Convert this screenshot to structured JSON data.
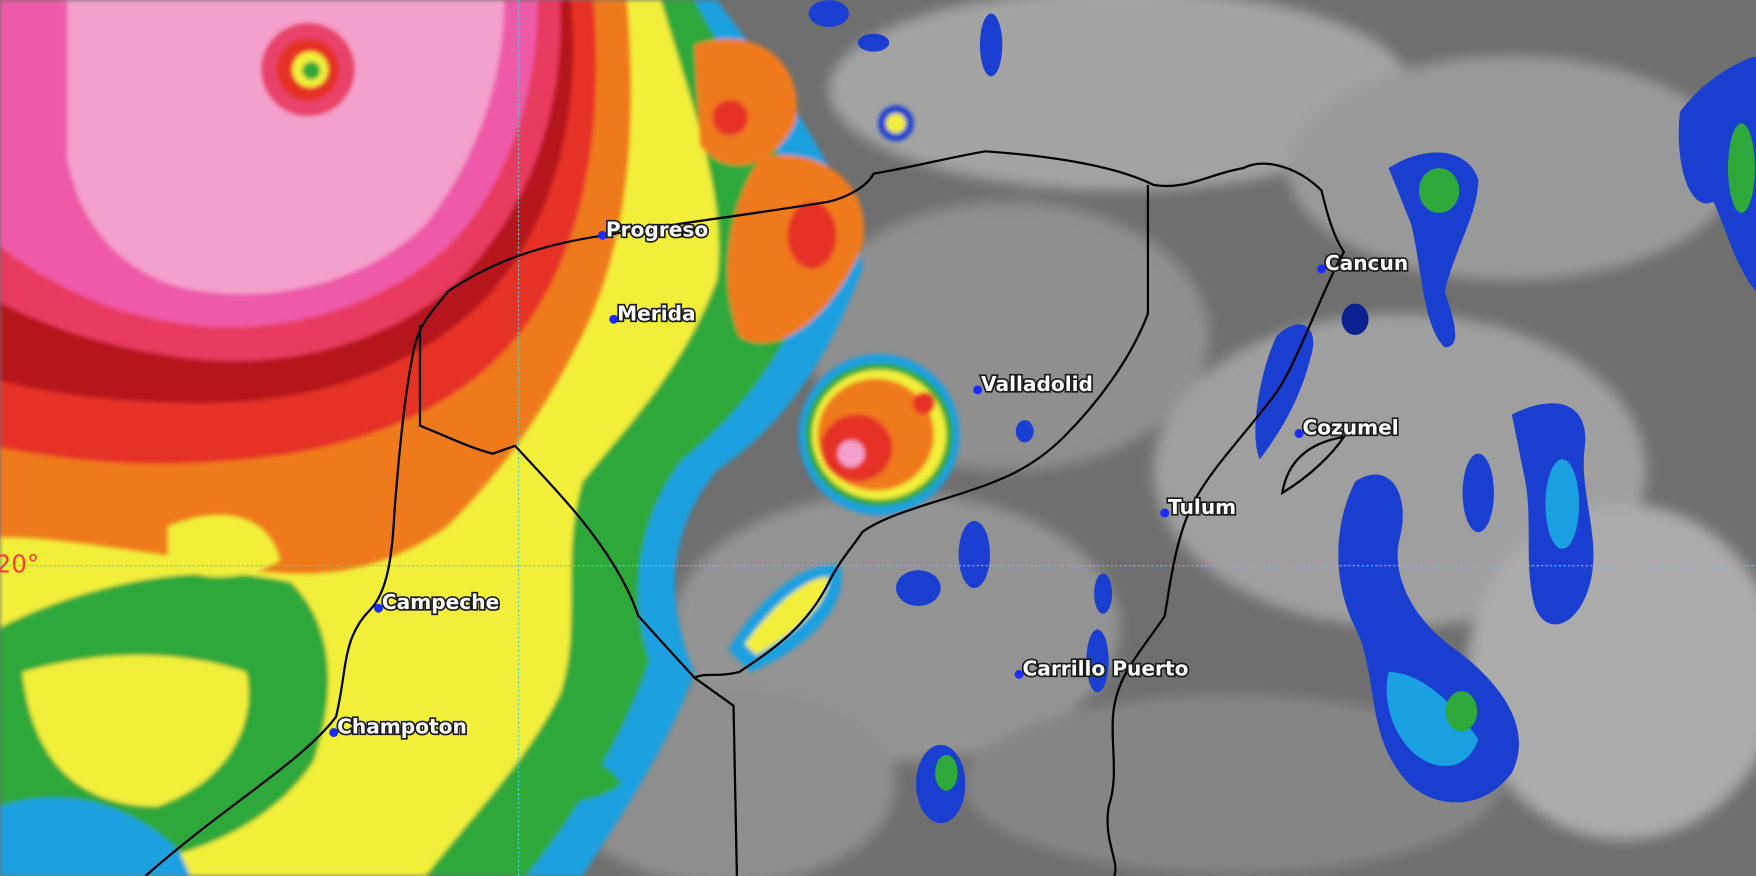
{
  "map": {
    "latitude_label": "20°",
    "cities": [
      "Progreso",
      "Merida",
      "Valladolid",
      "Cancun",
      "Cozumel",
      "Tulum",
      "Carrillo Puerto",
      "Campeche",
      "Champoton"
    ]
  }
}
